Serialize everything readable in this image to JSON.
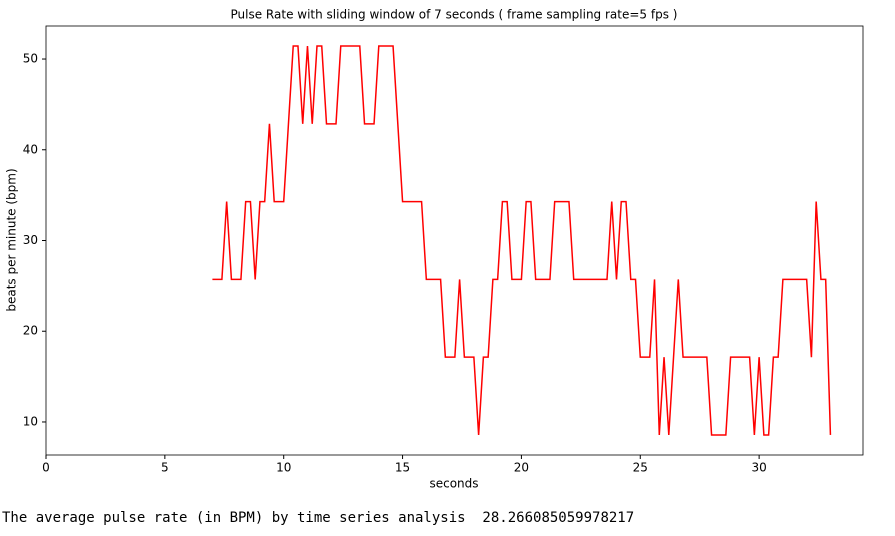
{
  "chart_data": {
    "type": "line",
    "title": "Pulse Rate with sliding window of 7 seconds  ( frame sampling rate=5 fps )",
    "xlabel": "seconds",
    "ylabel": "beats per minute (bpm)",
    "x": [
      7.0,
      7.4,
      7.6,
      7.8,
      8.2,
      8.4,
      8.6,
      8.8,
      9.0,
      9.2,
      9.4,
      9.6,
      10.0,
      10.2,
      10.4,
      10.6,
      10.8,
      11.0,
      11.2,
      11.4,
      11.6,
      11.8,
      12.2,
      12.4,
      13.2,
      13.4,
      13.8,
      14.0,
      14.6,
      14.8,
      15.0,
      15.8,
      16.0,
      16.6,
      16.8,
      17.2,
      17.4,
      17.6,
      18.0,
      18.2,
      18.4,
      18.6,
      18.8,
      19.0,
      19.2,
      19.4,
      19.6,
      20.0,
      20.2,
      20.4,
      20.6,
      21.2,
      21.4,
      22.0,
      22.2,
      23.6,
      23.8,
      24.0,
      24.2,
      24.4,
      24.6,
      24.8,
      25.0,
      25.4,
      25.6,
      25.8,
      26.0,
      26.2,
      26.4,
      26.6,
      26.8,
      27.8,
      28.0,
      28.6,
      28.8,
      29.6,
      29.8,
      30.0,
      30.2,
      30.4,
      30.6,
      30.8,
      31.0,
      32.0,
      32.2,
      32.4,
      32.6,
      32.8,
      33.0
    ],
    "series": [
      {
        "name": "pulse rate",
        "color": "#ff0000",
        "values": [
          25.71,
          25.71,
          34.29,
          25.71,
          25.71,
          34.29,
          34.29,
          25.71,
          34.29,
          34.29,
          42.86,
          34.29,
          34.29,
          42.86,
          51.43,
          51.43,
          42.86,
          51.43,
          42.86,
          51.43,
          51.43,
          42.86,
          42.86,
          51.43,
          51.43,
          42.86,
          42.86,
          51.43,
          51.43,
          42.86,
          34.29,
          34.29,
          25.71,
          25.71,
          17.14,
          17.14,
          25.71,
          17.14,
          17.14,
          8.57,
          17.14,
          17.14,
          25.71,
          25.71,
          34.29,
          34.29,
          25.71,
          25.71,
          34.29,
          34.29,
          25.71,
          25.71,
          34.29,
          34.29,
          25.71,
          25.71,
          34.29,
          25.71,
          34.29,
          34.29,
          25.71,
          25.71,
          17.14,
          17.14,
          25.71,
          8.57,
          17.14,
          8.57,
          17.14,
          25.71,
          17.14,
          17.14,
          8.57,
          8.57,
          17.14,
          17.14,
          8.57,
          17.14,
          8.57,
          8.57,
          17.14,
          17.14,
          25.71,
          25.71,
          17.14,
          34.29,
          25.71,
          25.71,
          8.57
        ]
      }
    ],
    "xlim": [
      0,
      34.37
    ],
    "ylim": [
      6.36,
      53.64
    ],
    "xticks": [
      0,
      5,
      10,
      15,
      20,
      25,
      30
    ],
    "yticks": [
      10,
      20,
      30,
      40,
      50
    ]
  },
  "output_text": "The average pulse rate (in BPM) by time series analysis  28.266085059978217"
}
